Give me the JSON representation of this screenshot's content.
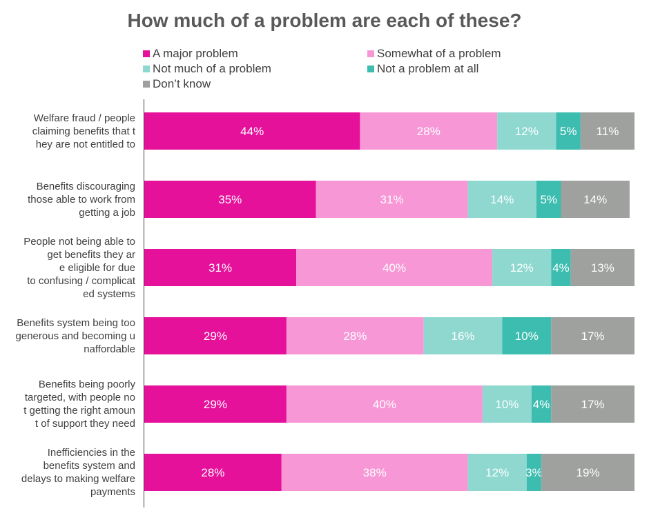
{
  "chart_data": {
    "type": "bar",
    "orientation": "horizontal",
    "stacked": true,
    "percent_stacked": true,
    "title": "How much of a problem are each of these?",
    "categories": [
      "Welfare fraud / people claiming benefits that they are not entitled to",
      "Benefits discouraging those able to work from getting a job",
      "People not being able to get benefits they are eligible for due to confusing / complicated systems",
      "Benefits system being too generous and becoming unaffordable",
      "Benefits being poorly targeted, with people not getting the right amount of support they need",
      "Inefficiencies in the benefits system and delays to making welfare payments"
    ],
    "series": [
      {
        "name": "A major problem",
        "color": "#E6119A",
        "values": [
          44,
          35,
          31,
          29,
          29,
          28
        ]
      },
      {
        "name": "Somewhat of a problem",
        "color": "#F797D6",
        "values": [
          28,
          31,
          40,
          28,
          40,
          38
        ]
      },
      {
        "name": "Not much of a problem",
        "color": "#8ED8D0",
        "values": [
          12,
          14,
          12,
          16,
          10,
          12
        ]
      },
      {
        "name": "Not a problem at all",
        "color": "#3DBDB0",
        "values": [
          5,
          5,
          4,
          10,
          4,
          3
        ]
      },
      {
        "name": "Don’t know",
        "color": "#9EA19E",
        "values": [
          11,
          14,
          13,
          17,
          17,
          19
        ]
      }
    ],
    "xlim": [
      0,
      100
    ],
    "grid": false,
    "legend_position": "top",
    "data_label_color": "#ffffff"
  }
}
